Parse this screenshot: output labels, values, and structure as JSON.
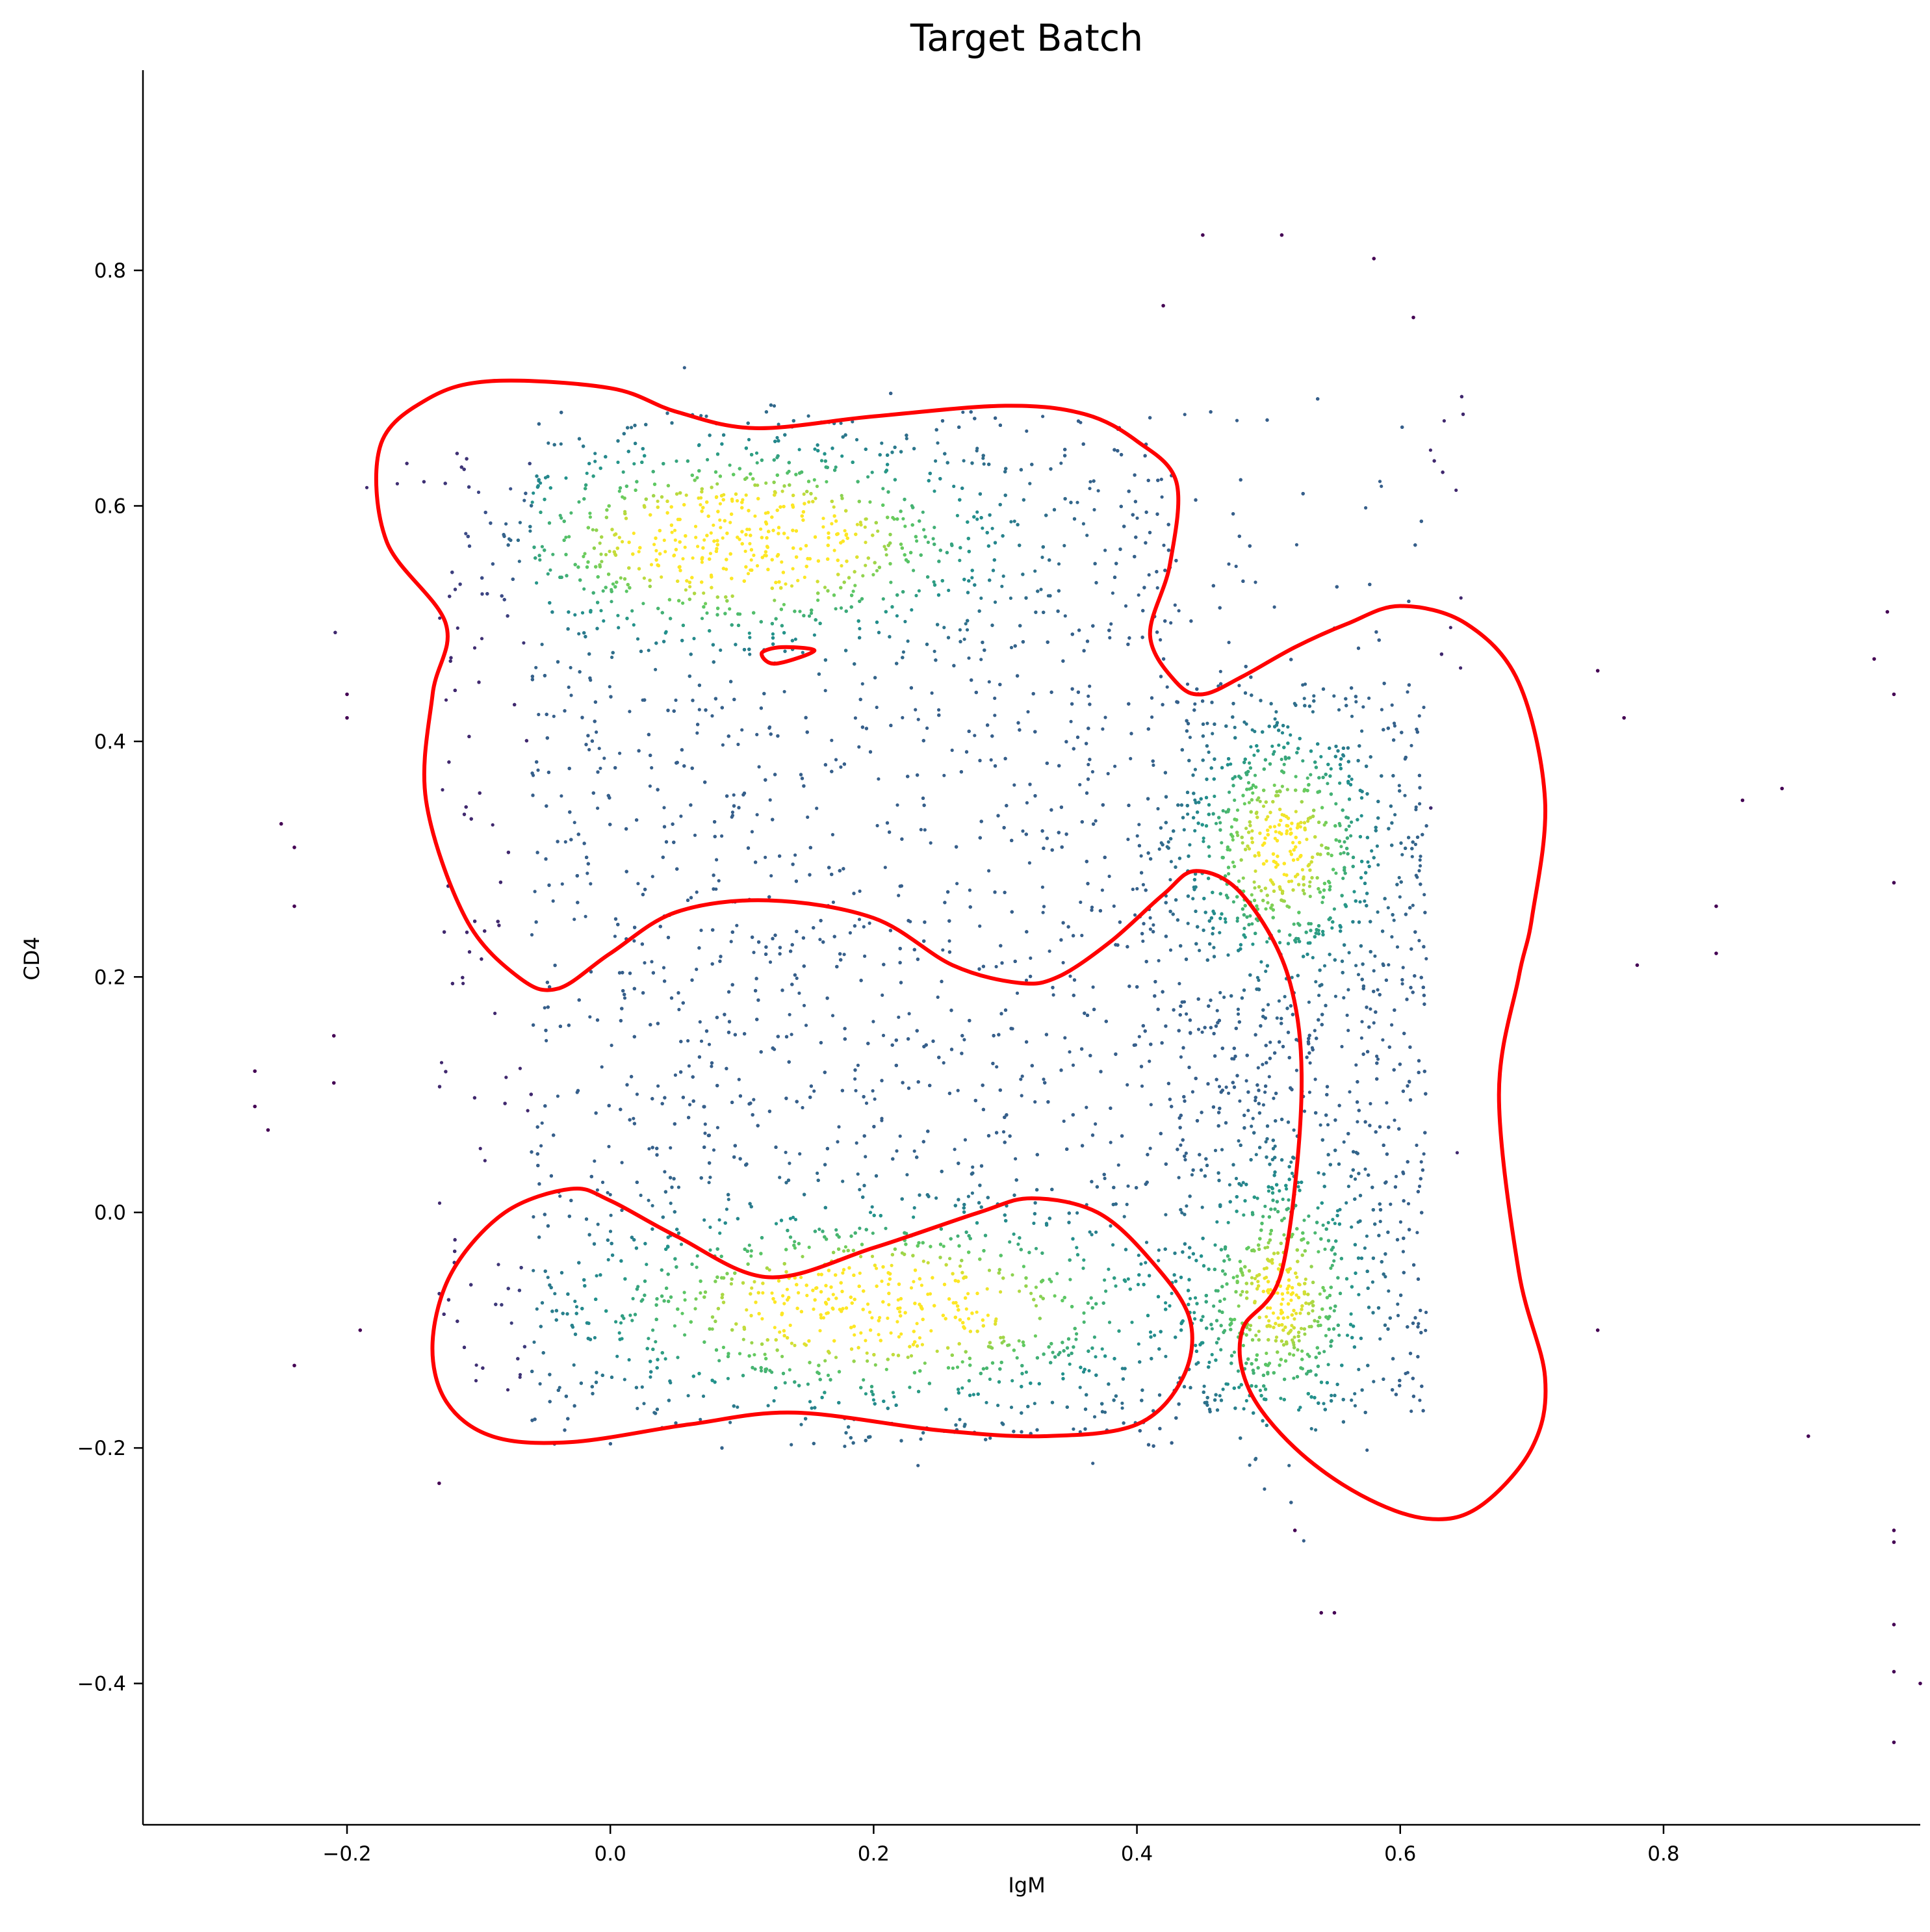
{
  "chart_data": {
    "type": "scatter",
    "title": "Target Batch",
    "xlabel": "IgM",
    "ylabel": "CD4",
    "xlim": [
      -0.355,
      0.995
    ],
    "ylim": [
      -0.52,
      0.97
    ],
    "xticks": [
      -0.2,
      0.0,
      0.2,
      0.4,
      0.6,
      0.8
    ],
    "yticks": [
      -0.4,
      -0.2,
      0.0,
      0.2,
      0.4,
      0.6,
      0.8
    ],
    "xtick_labels": [
      "−0.2",
      "0.0",
      "0.2",
      "0.4",
      "0.6",
      "0.8"
    ],
    "ytick_labels": [
      "−0.4",
      "−0.2",
      "0.0",
      "0.2",
      "0.4",
      "0.6",
      "0.8"
    ],
    "grid": false,
    "legend": "none",
    "colormap": "viridis",
    "colormap_stops": [
      "#440154",
      "#3b528b",
      "#21918c",
      "#5ec962",
      "#fde725"
    ],
    "contour_color": "#ff0000",
    "density_clusters": [
      {
        "x": 0.51,
        "y": 0.31,
        "sx": 0.038,
        "sy": 0.055,
        "weight": 0.1
      },
      {
        "x": 0.51,
        "y": -0.07,
        "sx": 0.035,
        "sy": 0.06,
        "weight": 0.09
      },
      {
        "x": 0.1,
        "y": 0.57,
        "sx": 0.1,
        "sy": 0.045,
        "weight": 0.13
      },
      {
        "x": 0.2,
        "y": -0.08,
        "sx": 0.12,
        "sy": 0.045,
        "weight": 0.12
      }
    ],
    "outliers": [
      [
        0.45,
        0.83
      ],
      [
        0.51,
        0.83
      ],
      [
        0.58,
        0.81
      ],
      [
        0.61,
        0.76
      ],
      [
        0.42,
        0.77
      ],
      [
        0.97,
        0.51
      ],
      [
        0.96,
        0.47
      ],
      [
        0.975,
        0.44
      ],
      [
        0.975,
        0.28
      ],
      [
        0.91,
        -0.19
      ],
      [
        0.975,
        -0.27
      ],
      [
        0.975,
        -0.28
      ],
      [
        0.975,
        -0.35
      ],
      [
        0.975,
        -0.39
      ],
      [
        0.975,
        -0.45
      ],
      [
        0.995,
        -0.4
      ],
      [
        -0.27,
        0.12
      ],
      [
        -0.26,
        0.07
      ],
      [
        -0.27,
        0.09
      ],
      [
        -0.25,
        0.33
      ],
      [
        -0.24,
        0.31
      ],
      [
        -0.24,
        0.26
      ],
      [
        -0.24,
        -0.13
      ],
      [
        -0.2,
        0.44
      ],
      [
        -0.2,
        0.42
      ],
      [
        -0.13,
        -0.23
      ],
      [
        0.89,
        0.36
      ],
      [
        0.86,
        0.35
      ],
      [
        0.84,
        0.22
      ],
      [
        0.84,
        0.26
      ],
      [
        0.78,
        0.21
      ],
      [
        0.77,
        0.42
      ],
      [
        0.75,
        0.46
      ],
      [
        0.75,
        -0.1
      ],
      [
        0.54,
        -0.34
      ],
      [
        0.55,
        -0.34
      ],
      [
        0.52,
        -0.27
      ],
      [
        -0.21,
        0.15
      ],
      [
        -0.21,
        0.11
      ],
      [
        -0.19,
        -0.1
      ]
    ],
    "contours": [
      [
        [
          -0.09,
          0.706
        ],
        [
          0.0,
          0.7
        ],
        [
          0.05,
          0.68
        ],
        [
          0.11,
          0.666
        ],
        [
          0.2,
          0.676
        ],
        [
          0.3,
          0.685
        ],
        [
          0.36,
          0.678
        ],
        [
          0.4,
          0.655
        ],
        [
          0.43,
          0.62
        ],
        [
          0.425,
          0.55
        ],
        [
          0.41,
          0.49
        ],
        [
          0.43,
          0.45
        ],
        [
          0.45,
          0.44
        ],
        [
          0.48,
          0.455
        ],
        [
          0.52,
          0.48
        ],
        [
          0.56,
          0.5
        ],
        [
          0.6,
          0.515
        ],
        [
          0.65,
          0.5
        ],
        [
          0.69,
          0.45
        ],
        [
          0.71,
          0.35
        ],
        [
          0.7,
          0.25
        ],
        [
          0.69,
          0.2
        ],
        [
          0.675,
          0.1
        ],
        [
          0.69,
          -0.05
        ],
        [
          0.71,
          -0.14
        ],
        [
          0.7,
          -0.2
        ],
        [
          0.66,
          -0.25
        ],
        [
          0.62,
          -0.26
        ],
        [
          0.57,
          -0.24
        ],
        [
          0.52,
          -0.2
        ],
        [
          0.485,
          -0.15
        ],
        [
          0.48,
          -0.1
        ],
        [
          0.51,
          -0.05
        ],
        [
          0.525,
          0.1
        ],
        [
          0.515,
          0.2
        ],
        [
          0.48,
          0.27
        ],
        [
          0.445,
          0.29
        ],
        [
          0.42,
          0.27
        ],
        [
          0.38,
          0.23
        ],
        [
          0.34,
          0.2
        ],
        [
          0.31,
          0.195
        ],
        [
          0.26,
          0.21
        ],
        [
          0.2,
          0.25
        ],
        [
          0.12,
          0.265
        ],
        [
          0.05,
          0.255
        ],
        [
          0.0,
          0.22
        ],
        [
          -0.04,
          0.19
        ],
        [
          -0.07,
          0.2
        ],
        [
          -0.11,
          0.25
        ],
        [
          -0.14,
          0.35
        ],
        [
          -0.135,
          0.44
        ],
        [
          -0.125,
          0.5
        ],
        [
          -0.17,
          0.57
        ],
        [
          -0.175,
          0.65
        ],
        [
          -0.14,
          0.69
        ],
        [
          -0.09,
          0.706
        ]
      ],
      [
        [
          0.115,
          0.475
        ],
        [
          0.13,
          0.48
        ],
        [
          0.155,
          0.477
        ],
        [
          0.125,
          0.466
        ],
        [
          0.115,
          0.475
        ]
      ],
      [
        [
          -0.03,
          0.02
        ],
        [
          0.0,
          0.01
        ],
        [
          0.05,
          -0.02
        ],
        [
          0.12,
          -0.055
        ],
        [
          0.2,
          -0.03
        ],
        [
          0.28,
          0.0
        ],
        [
          0.32,
          0.012
        ],
        [
          0.37,
          0.0
        ],
        [
          0.41,
          -0.04
        ],
        [
          0.44,
          -0.09
        ],
        [
          0.435,
          -0.14
        ],
        [
          0.4,
          -0.18
        ],
        [
          0.33,
          -0.19
        ],
        [
          0.25,
          -0.185
        ],
        [
          0.14,
          -0.17
        ],
        [
          0.06,
          -0.18
        ],
        [
          -0.03,
          -0.195
        ],
        [
          -0.09,
          -0.19
        ],
        [
          -0.125,
          -0.16
        ],
        [
          -0.135,
          -0.11
        ],
        [
          -0.12,
          -0.05
        ],
        [
          -0.08,
          0.0
        ],
        [
          -0.03,
          0.02
        ]
      ]
    ]
  }
}
